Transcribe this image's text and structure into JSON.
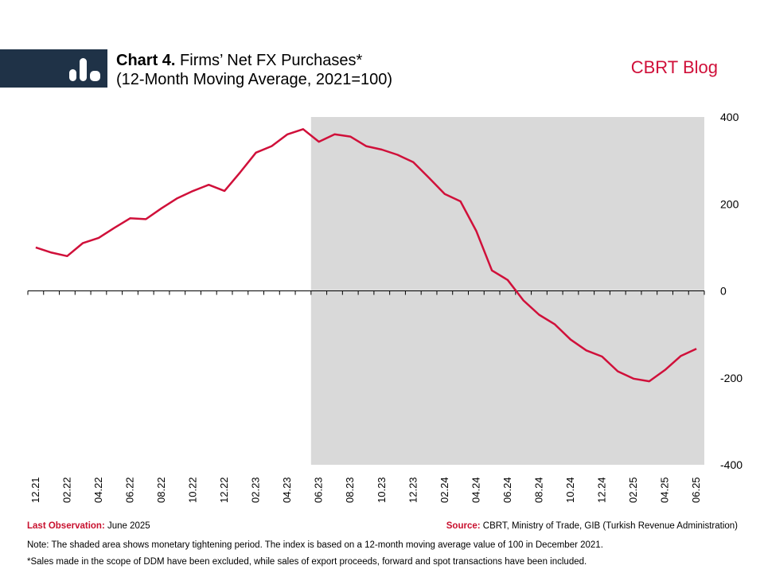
{
  "header": {
    "title_bold": "Chart 4.",
    "title_rest": "Firms’ Net FX Purchases*",
    "subtitle": "(12-Month Moving Average, 2021=100)",
    "brand": "CBRT Blog"
  },
  "colors": {
    "line": "#d0103a",
    "shade": "#d9d9d9",
    "logo_band": "#1f3247",
    "brand": "#d0103a"
  },
  "icons": {
    "logo": "bar-chart-icon"
  },
  "footer": {
    "last_obs_label": "Last Observation:",
    "last_obs_value": "June 2025",
    "source_label": "Source:",
    "source_value": "CBRT, Ministry of Trade, GIB (Turkish Revenue Administration)",
    "note": "Note: The shaded area shows monetary tightening period. The index is based on a 12-month moving average value of 100 in December 2021.",
    "footnote": "*Sales made in the scope of DDM have been excluded, while sales of export proceeds, forward and spot transactions have been included."
  },
  "chart_data": {
    "type": "line",
    "title": "Firms’ Net FX Purchases*",
    "subtitle": "(12-Month Moving Average, 2021=100)",
    "ylim": [
      -400,
      400
    ],
    "yticks": [
      400,
      200,
      0,
      -200,
      -400
    ],
    "y_axis_side": "right",
    "x_tick_labels": [
      "12.21",
      "02.22",
      "04.22",
      "06.22",
      "08.22",
      "10.22",
      "12.22",
      "02.23",
      "04.23",
      "06.23",
      "08.23",
      "10.23",
      "12.23",
      "02.24",
      "04.24",
      "06.24",
      "08.24",
      "10.24",
      "12.24",
      "02.25",
      "04.25",
      "06.25"
    ],
    "shaded_period": {
      "from": "06.23",
      "to": "06.25"
    },
    "grid": false,
    "series": [
      {
        "x": [
          "12.21",
          "01.22",
          "02.22",
          "03.22",
          "04.22",
          "05.22",
          "06.22",
          "07.22",
          "08.22",
          "09.22",
          "10.22",
          "11.22",
          "12.22",
          "01.23",
          "02.23",
          "03.23",
          "04.23",
          "05.23",
          "06.23",
          "07.23",
          "08.23",
          "09.23",
          "10.23",
          "11.23",
          "12.23",
          "01.24",
          "02.24",
          "03.24",
          "04.24",
          "05.24",
          "06.24",
          "07.24",
          "08.24",
          "09.24",
          "10.24",
          "11.24",
          "12.24",
          "01.25",
          "02.25",
          "03.25",
          "04.25",
          "05.25",
          "06.25"
        ],
        "values": [
          100,
          88,
          80,
          110,
          122,
          145,
          167,
          165,
          190,
          213,
          230,
          244,
          230,
          273,
          318,
          333,
          360,
          372,
          343,
          360,
          355,
          333,
          325,
          313,
          296,
          260,
          223,
          206,
          138,
          47,
          25,
          -22,
          -55,
          -77,
          -112,
          -137,
          -151,
          -185,
          -202,
          -208,
          -182,
          -150,
          -133
        ]
      }
    ]
  }
}
